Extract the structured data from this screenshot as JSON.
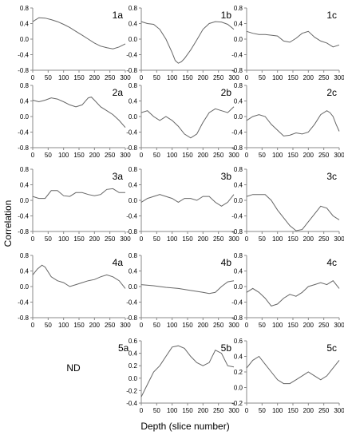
{
  "figure": {
    "ylabel": "Correlation",
    "xlabel": "Depth (slice number)",
    "nd_label": "ND"
  },
  "chart_data": [
    {
      "panel": "1a",
      "type": "line",
      "xlim": [
        0,
        300
      ],
      "ylim": [
        -0.8,
        0.8
      ],
      "x_ticks": [
        0,
        50,
        100,
        150,
        200,
        250,
        300
      ],
      "y_ticks": [
        -0.8,
        -0.4,
        0.0,
        0.4,
        0.8
      ],
      "x": [
        0,
        20,
        40,
        60,
        80,
        100,
        120,
        140,
        160,
        180,
        200,
        220,
        240,
        260,
        280,
        300
      ],
      "y": [
        0.45,
        0.55,
        0.54,
        0.5,
        0.45,
        0.38,
        0.3,
        0.2,
        0.1,
        0.0,
        -0.1,
        -0.18,
        -0.22,
        -0.25,
        -0.2,
        -0.12
      ]
    },
    {
      "panel": "1b",
      "type": "line",
      "xlim": [
        0,
        300
      ],
      "ylim": [
        -0.8,
        0.8
      ],
      "x_ticks": [
        0,
        50,
        100,
        150,
        200,
        250,
        300
      ],
      "y_ticks": [
        -0.8,
        -0.4,
        0.0,
        0.4,
        0.8
      ],
      "x": [
        0,
        20,
        40,
        60,
        80,
        100,
        110,
        120,
        130,
        140,
        160,
        180,
        200,
        220,
        240,
        260,
        280,
        300
      ],
      "y": [
        0.45,
        0.4,
        0.38,
        0.25,
        0.0,
        -0.35,
        -0.55,
        -0.62,
        -0.58,
        -0.5,
        -0.28,
        -0.02,
        0.25,
        0.4,
        0.45,
        0.44,
        0.38,
        0.25
      ]
    },
    {
      "panel": "1c",
      "type": "line",
      "xlim": [
        0,
        300
      ],
      "ylim": [
        -0.8,
        0.8
      ],
      "x_ticks": [
        0,
        50,
        100,
        150,
        200,
        250,
        300
      ],
      "y_ticks": [
        -0.8,
        -0.4,
        0.0,
        0.4,
        0.8
      ],
      "x": [
        0,
        20,
        40,
        60,
        80,
        100,
        120,
        140,
        160,
        180,
        200,
        220,
        240,
        260,
        280,
        300
      ],
      "y": [
        0.2,
        0.15,
        0.12,
        0.12,
        0.1,
        0.08,
        -0.05,
        -0.08,
        0.02,
        0.15,
        0.2,
        0.05,
        -0.05,
        -0.1,
        -0.2,
        -0.15
      ]
    },
    {
      "panel": "2a",
      "type": "line",
      "xlim": [
        0,
        300
      ],
      "ylim": [
        -0.8,
        0.8
      ],
      "x_ticks": [
        0,
        50,
        100,
        150,
        200,
        250,
        300
      ],
      "y_ticks": [
        -0.8,
        -0.4,
        0.0,
        0.4,
        0.8
      ],
      "x": [
        0,
        20,
        40,
        60,
        80,
        100,
        120,
        140,
        160,
        180,
        190,
        200,
        220,
        240,
        260,
        280,
        300
      ],
      "y": [
        0.42,
        0.38,
        0.42,
        0.48,
        0.45,
        0.38,
        0.3,
        0.25,
        0.3,
        0.48,
        0.5,
        0.42,
        0.25,
        0.15,
        0.05,
        -0.1,
        -0.28
      ]
    },
    {
      "panel": "2b",
      "type": "line",
      "xlim": [
        0,
        300
      ],
      "ylim": [
        -0.8,
        0.8
      ],
      "x_ticks": [
        0,
        50,
        100,
        150,
        200,
        250,
        300
      ],
      "y_ticks": [
        -0.8,
        -0.4,
        0.0,
        0.4,
        0.8
      ],
      "x": [
        0,
        20,
        40,
        60,
        80,
        100,
        120,
        140,
        160,
        180,
        200,
        220,
        240,
        260,
        280,
        300
      ],
      "y": [
        0.1,
        0.15,
        0.0,
        -0.1,
        0.0,
        -0.1,
        -0.25,
        -0.45,
        -0.55,
        -0.45,
        -0.15,
        0.1,
        0.2,
        0.15,
        0.1,
        0.25
      ]
    },
    {
      "panel": "2c",
      "type": "line",
      "xlim": [
        0,
        300
      ],
      "ylim": [
        -0.8,
        0.8
      ],
      "x_ticks": [
        0,
        50,
        100,
        150,
        200,
        250,
        300
      ],
      "y_ticks": [
        -0.8,
        -0.4,
        0.0,
        0.4,
        0.8
      ],
      "x": [
        0,
        20,
        40,
        60,
        80,
        100,
        120,
        140,
        160,
        180,
        200,
        220,
        240,
        260,
        270,
        280,
        290,
        300
      ],
      "y": [
        -0.1,
        0.0,
        0.05,
        0.0,
        -0.2,
        -0.35,
        -0.5,
        -0.48,
        -0.42,
        -0.45,
        -0.4,
        -0.2,
        0.05,
        0.15,
        0.1,
        0.0,
        -0.2,
        -0.38
      ]
    },
    {
      "panel": "3a",
      "type": "line",
      "xlim": [
        0,
        300
      ],
      "ylim": [
        -0.8,
        0.8
      ],
      "x_ticks": [
        0,
        50,
        100,
        150,
        200,
        250,
        300
      ],
      "y_ticks": [
        -0.8,
        -0.4,
        0.0,
        0.4,
        0.8
      ],
      "x": [
        0,
        20,
        40,
        60,
        80,
        100,
        120,
        140,
        160,
        180,
        200,
        220,
        240,
        260,
        280,
        300
      ],
      "y": [
        0.1,
        0.05,
        0.05,
        0.25,
        0.25,
        0.12,
        0.1,
        0.2,
        0.2,
        0.15,
        0.12,
        0.15,
        0.28,
        0.3,
        0.2,
        0.2
      ]
    },
    {
      "panel": "3b",
      "type": "line",
      "xlim": [
        0,
        300
      ],
      "ylim": [
        -0.8,
        0.8
      ],
      "x_ticks": [
        0,
        50,
        100,
        150,
        200,
        250,
        300
      ],
      "y_ticks": [
        -0.8,
        -0.4,
        0.0,
        0.4,
        0.8
      ],
      "x": [
        0,
        20,
        40,
        60,
        80,
        100,
        120,
        140,
        160,
        180,
        200,
        220,
        240,
        260,
        280,
        300
      ],
      "y": [
        -0.05,
        0.05,
        0.1,
        0.15,
        0.1,
        0.05,
        -0.05,
        0.05,
        0.05,
        0.0,
        0.1,
        0.1,
        -0.05,
        -0.15,
        -0.05,
        0.15
      ]
    },
    {
      "panel": "3c",
      "type": "line",
      "xlim": [
        0,
        300
      ],
      "ylim": [
        -0.8,
        0.8
      ],
      "x_ticks": [
        0,
        50,
        100,
        150,
        200,
        250,
        300
      ],
      "y_ticks": [
        -0.8,
        -0.4,
        0.0,
        0.4,
        0.8
      ],
      "x": [
        0,
        20,
        40,
        60,
        80,
        100,
        120,
        140,
        160,
        180,
        200,
        220,
        240,
        260,
        280,
        300
      ],
      "y": [
        0.1,
        0.15,
        0.15,
        0.15,
        0.0,
        -0.25,
        -0.45,
        -0.65,
        -0.78,
        -0.75,
        -0.55,
        -0.35,
        -0.15,
        -0.2,
        -0.4,
        -0.5
      ]
    },
    {
      "panel": "4a",
      "type": "line",
      "xlim": [
        0,
        300
      ],
      "ylim": [
        -0.8,
        0.8
      ],
      "x_ticks": [
        0,
        50,
        100,
        150,
        200,
        250,
        300
      ],
      "y_ticks": [
        -0.8,
        -0.4,
        0.0,
        0.4,
        0.8
      ],
      "x": [
        0,
        15,
        30,
        40,
        60,
        80,
        100,
        120,
        140,
        160,
        180,
        200,
        220,
        240,
        260,
        280,
        300
      ],
      "y": [
        0.3,
        0.45,
        0.55,
        0.5,
        0.25,
        0.15,
        0.1,
        0.0,
        0.05,
        0.1,
        0.15,
        0.18,
        0.25,
        0.3,
        0.25,
        0.15,
        -0.05
      ]
    },
    {
      "panel": "4b",
      "type": "line",
      "xlim": [
        0,
        300
      ],
      "ylim": [
        -0.8,
        0.8
      ],
      "x_ticks": [
        0,
        50,
        100,
        150,
        200,
        250,
        300
      ],
      "y_ticks": [
        -0.8,
        -0.4,
        0.0,
        0.4,
        0.8
      ],
      "x": [
        0,
        40,
        80,
        120,
        160,
        200,
        220,
        240,
        260,
        280,
        300
      ],
      "y": [
        0.05,
        0.02,
        -0.02,
        -0.05,
        -0.1,
        -0.15,
        -0.18,
        -0.15,
        0.0,
        0.12,
        0.15
      ]
    },
    {
      "panel": "4c",
      "type": "line",
      "xlim": [
        0,
        300
      ],
      "ylim": [
        -0.8,
        0.8
      ],
      "x_ticks": [
        0,
        50,
        100,
        150,
        200,
        250,
        300
      ],
      "y_ticks": [
        -0.8,
        -0.4,
        0.0,
        0.4,
        0.8
      ],
      "x": [
        0,
        20,
        40,
        60,
        80,
        100,
        120,
        140,
        160,
        180,
        200,
        220,
        240,
        260,
        280,
        300
      ],
      "y": [
        -0.15,
        -0.05,
        -0.15,
        -0.3,
        -0.5,
        -0.45,
        -0.3,
        -0.2,
        -0.25,
        -0.15,
        0.0,
        0.05,
        0.1,
        0.05,
        0.15,
        -0.05
      ]
    },
    {
      "panel": "5b",
      "type": "line",
      "xlim": [
        0,
        300
      ],
      "ylim": [
        -0.4,
        0.6
      ],
      "x_ticks": [
        0,
        50,
        100,
        150,
        200,
        250,
        300
      ],
      "y_ticks": [
        -0.4,
        -0.2,
        0.0,
        0.2,
        0.4,
        0.6
      ],
      "x": [
        0,
        20,
        40,
        60,
        80,
        100,
        120,
        140,
        160,
        180,
        200,
        220,
        240,
        260,
        280,
        300
      ],
      "y": [
        -0.3,
        -0.1,
        0.1,
        0.2,
        0.35,
        0.5,
        0.52,
        0.48,
        0.35,
        0.25,
        0.2,
        0.25,
        0.45,
        0.4,
        0.2,
        0.18
      ]
    },
    {
      "panel": "5c",
      "type": "line",
      "xlim": [
        0,
        300
      ],
      "ylim": [
        -0.2,
        0.6
      ],
      "x_ticks": [
        0,
        50,
        100,
        150,
        200,
        250,
        300
      ],
      "y_ticks": [
        -0.2,
        0.0,
        0.2,
        0.4,
        0.6
      ],
      "x": [
        0,
        20,
        40,
        60,
        80,
        100,
        120,
        140,
        160,
        180,
        200,
        220,
        240,
        260,
        280,
        300
      ],
      "y": [
        0.25,
        0.35,
        0.4,
        0.3,
        0.2,
        0.1,
        0.05,
        0.05,
        0.1,
        0.15,
        0.2,
        0.15,
        0.1,
        0.15,
        0.25,
        0.35
      ]
    }
  ]
}
